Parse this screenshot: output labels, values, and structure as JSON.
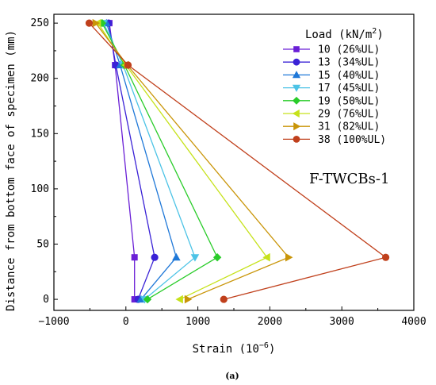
{
  "chart_data": {
    "type": "line",
    "xlabel": "Strain (10",
    "xlabel_sup": "−6",
    "xlabel_close": ")",
    "ylabel": "Distance from bottom face of specimen (mm)",
    "xlim": [
      -1000,
      4000
    ],
    "ylim": [
      -10,
      258
    ],
    "xticks": [
      -1000,
      0,
      1000,
      2000,
      3000,
      4000
    ],
    "xtick_labels": [
      "−1000",
      "0",
      "1000",
      "2000",
      "3000",
      "4000"
    ],
    "yticks": [
      0,
      50,
      100,
      150,
      200,
      250
    ],
    "ytick_labels": [
      "0",
      "50",
      "100",
      "150",
      "200",
      "250"
    ],
    "grid": false,
    "legend_position": "right",
    "legend_title": "Load (kN/m",
    "legend_title_sup": "2",
    "legend_title_close": ")",
    "annotation": "F-TWCBs-1",
    "caption": "(a)",
    "series": [
      {
        "name": "10 (26%UL)",
        "color": "#6a1fd6",
        "marker": "square",
        "points": [
          [
            120,
            0
          ],
          [
            120,
            38
          ],
          [
            -150,
            212
          ],
          [
            -230,
            250
          ]
        ]
      },
      {
        "name": "13 (34%UL)",
        "color": "#3a22d6",
        "marker": "circle",
        "points": [
          [
            170,
            0
          ],
          [
            400,
            38
          ],
          [
            -140,
            212
          ],
          [
            -240,
            250
          ]
        ]
      },
      {
        "name": "15 (40%UL)",
        "color": "#1f78d8",
        "marker": "triangle-up",
        "points": [
          [
            210,
            0
          ],
          [
            700,
            38
          ],
          [
            -80,
            212
          ],
          [
            -270,
            250
          ]
        ]
      },
      {
        "name": "17 (45%UL)",
        "color": "#4cc3e6",
        "marker": "triangle-down",
        "points": [
          [
            260,
            0
          ],
          [
            960,
            38
          ],
          [
            -40,
            212
          ],
          [
            -310,
            250
          ]
        ]
      },
      {
        "name": "19 (50%UL)",
        "color": "#29cc29",
        "marker": "diamond",
        "points": [
          [
            300,
            0
          ],
          [
            1270,
            38
          ],
          [
            -20,
            212
          ],
          [
            -330,
            250
          ]
        ]
      },
      {
        "name": "29 (76%UL)",
        "color": "#c6e21a",
        "marker": "triangle-left",
        "points": [
          [
            750,
            0
          ],
          [
            1960,
            38
          ],
          [
            0,
            212
          ],
          [
            -390,
            250
          ]
        ]
      },
      {
        "name": "31 (82%UL)",
        "color": "#c99508",
        "marker": "triangle-right",
        "points": [
          [
            860,
            0
          ],
          [
            2260,
            38
          ],
          [
            20,
            212
          ],
          [
            -420,
            250
          ]
        ]
      },
      {
        "name": "38 (100%UL)",
        "color": "#c0401c",
        "marker": "circle",
        "points": [
          [
            1360,
            0
          ],
          [
            3610,
            38
          ],
          [
            30,
            212
          ],
          [
            -510,
            250
          ]
        ]
      }
    ]
  }
}
